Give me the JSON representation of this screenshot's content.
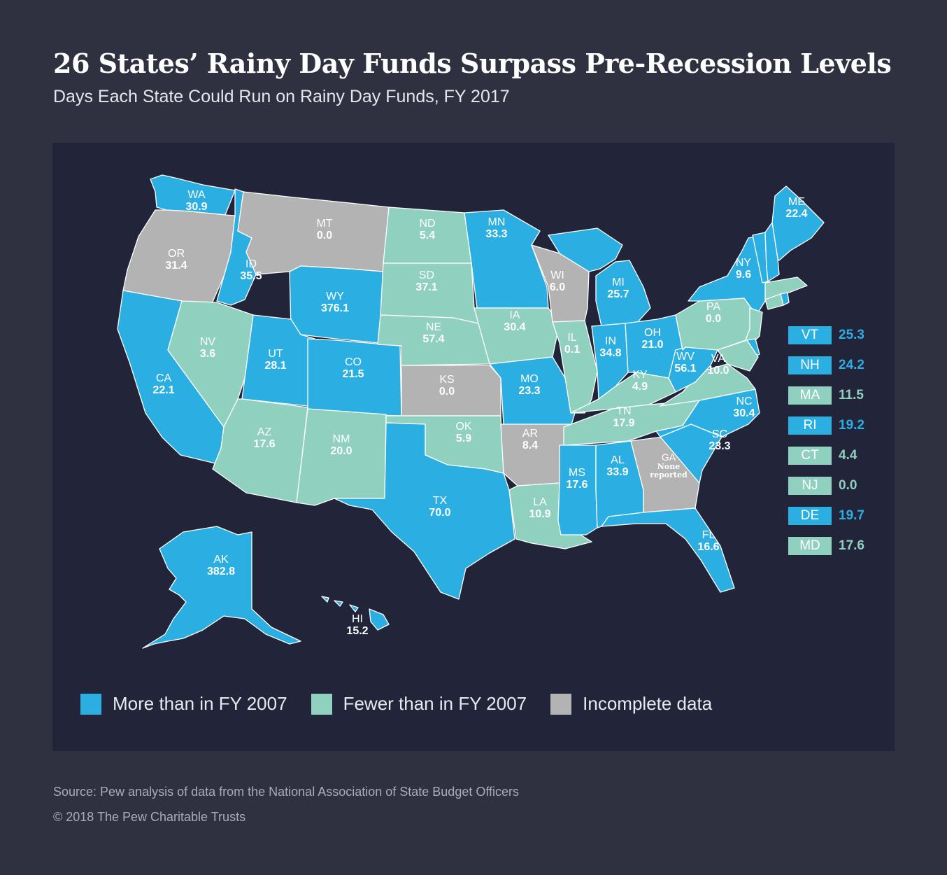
{
  "title": "26 States’ Rainy Day Funds Surpass Pre-Recession Levels",
  "subtitle": "Days Each State Could Run on Rainy Day Funds, FY 2017",
  "colors": {
    "more": "#2bafe3",
    "fewer": "#8fd0bf",
    "incomplete": "#b3b3b3",
    "background": "#2f3040",
    "panel": "#22243a"
  },
  "legend": {
    "more": "More than in FY 2007",
    "fewer": "Fewer than in FY 2007",
    "incomplete": "Incomplete data"
  },
  "states": [
    {
      "ab": "WA",
      "value": "30.9",
      "cat": "more"
    },
    {
      "ab": "OR",
      "value": "31.4",
      "cat": "incomplete"
    },
    {
      "ab": "CA",
      "value": "22.1",
      "cat": "more"
    },
    {
      "ab": "ID",
      "value": "35.5",
      "cat": "more"
    },
    {
      "ab": "NV",
      "value": "3.6",
      "cat": "fewer"
    },
    {
      "ab": "MT",
      "value": "0.0",
      "cat": "incomplete"
    },
    {
      "ab": "WY",
      "value": "376.1",
      "cat": "more"
    },
    {
      "ab": "UT",
      "value": "28.1",
      "cat": "more"
    },
    {
      "ab": "AZ",
      "value": "17.6",
      "cat": "fewer"
    },
    {
      "ab": "CO",
      "value": "21.5",
      "cat": "more"
    },
    {
      "ab": "NM",
      "value": "20.0",
      "cat": "fewer"
    },
    {
      "ab": "ND",
      "value": "5.4",
      "cat": "fewer"
    },
    {
      "ab": "SD",
      "value": "37.1",
      "cat": "fewer"
    },
    {
      "ab": "NE",
      "value": "57.4",
      "cat": "fewer"
    },
    {
      "ab": "KS",
      "value": "0.0",
      "cat": "incomplete"
    },
    {
      "ab": "OK",
      "value": "5.9",
      "cat": "fewer"
    },
    {
      "ab": "TX",
      "value": "70.0",
      "cat": "more"
    },
    {
      "ab": "MN",
      "value": "33.3",
      "cat": "more"
    },
    {
      "ab": "IA",
      "value": "30.4",
      "cat": "fewer"
    },
    {
      "ab": "MO",
      "value": "23.3",
      "cat": "more"
    },
    {
      "ab": "AR",
      "value": "8.4",
      "cat": "incomplete"
    },
    {
      "ab": "LA",
      "value": "10.9",
      "cat": "fewer"
    },
    {
      "ab": "WI",
      "value": "6.0",
      "cat": "incomplete"
    },
    {
      "ab": "IL",
      "value": "0.1",
      "cat": "fewer"
    },
    {
      "ab": "MI",
      "value": "25.7",
      "cat": "more"
    },
    {
      "ab": "IN",
      "value": "34.8",
      "cat": "more"
    },
    {
      "ab": "OH",
      "value": "21.0",
      "cat": "more"
    },
    {
      "ab": "KY",
      "value": "4.9",
      "cat": "fewer"
    },
    {
      "ab": "TN",
      "value": "17.9",
      "cat": "fewer"
    },
    {
      "ab": "MS",
      "value": "17.6",
      "cat": "more"
    },
    {
      "ab": "AL",
      "value": "33.9",
      "cat": "more"
    },
    {
      "ab": "GA",
      "value": "None reported",
      "cat": "incomplete"
    },
    {
      "ab": "FL",
      "value": "16.6",
      "cat": "more"
    },
    {
      "ab": "SC",
      "value": "23.3",
      "cat": "more"
    },
    {
      "ab": "NC",
      "value": "30.4",
      "cat": "more"
    },
    {
      "ab": "VA",
      "value": "10.0",
      "cat": "fewer"
    },
    {
      "ab": "WV",
      "value": "56.1",
      "cat": "more"
    },
    {
      "ab": "PA",
      "value": "0.0",
      "cat": "fewer"
    },
    {
      "ab": "NY",
      "value": "9.6",
      "cat": "more"
    },
    {
      "ab": "ME",
      "value": "22.4",
      "cat": "more"
    },
    {
      "ab": "AK",
      "value": "382.8",
      "cat": "more"
    },
    {
      "ab": "HI",
      "value": "15.2",
      "cat": "more"
    }
  ],
  "small_states": [
    {
      "ab": "VT",
      "value": "25.3",
      "cat": "more"
    },
    {
      "ab": "NH",
      "value": "24.2",
      "cat": "more"
    },
    {
      "ab": "MA",
      "value": "11.5",
      "cat": "fewer"
    },
    {
      "ab": "RI",
      "value": "19.2",
      "cat": "more"
    },
    {
      "ab": "CT",
      "value": "4.4",
      "cat": "fewer"
    },
    {
      "ab": "NJ",
      "value": "0.0",
      "cat": "fewer"
    },
    {
      "ab": "DE",
      "value": "19.7",
      "cat": "more"
    },
    {
      "ab": "MD",
      "value": "17.6",
      "cat": "fewer"
    }
  ],
  "source": "Source: Pew analysis of data from the National Association of State Budget Officers",
  "copyright": "© 2018 The Pew Charitable Trusts"
}
